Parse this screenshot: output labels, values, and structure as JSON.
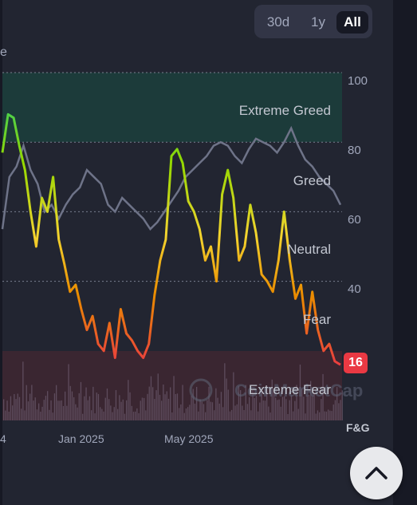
{
  "toggle": {
    "options": [
      "30d",
      "1y",
      "All"
    ],
    "selected": "All"
  },
  "axis_stub": "e",
  "chart_data": {
    "type": "line",
    "y_ticks": [
      100,
      80,
      60,
      40
    ],
    "ylim": [
      0,
      100
    ],
    "x_labels": [
      "4",
      "Jan 2025",
      "May 2025"
    ],
    "zones": [
      "Extreme Greed",
      "Greed",
      "Neutral",
      "Fear",
      "Extreme Fear"
    ],
    "zone_colors": {
      "extreme_greed": "#16c784",
      "extreme_fear": "#ea3943"
    },
    "current_value": 16,
    "volume_label": "F&G",
    "watermark": "CoinMarketCap",
    "series": [
      {
        "values": [
          55,
          70,
          73,
          79,
          72,
          68,
          60,
          62,
          58,
          62,
          65,
          67,
          72,
          70,
          68,
          62,
          60,
          64,
          62,
          60,
          58,
          55,
          57,
          60,
          63,
          66,
          70,
          72,
          74,
          76,
          79,
          80,
          79,
          76,
          74,
          78,
          81,
          80,
          79,
          77,
          80,
          84,
          79,
          75,
          73,
          70,
          68,
          66,
          62
        ]
      },
      {
        "values": [
          77,
          88,
          87,
          79,
          72,
          60,
          50,
          64,
          60,
          70,
          52,
          45,
          37,
          39,
          32,
          26,
          30,
          22,
          20,
          28,
          18,
          32,
          25,
          23,
          20,
          18,
          22,
          36,
          46,
          52,
          76,
          78,
          74,
          63,
          60,
          55,
          46,
          50,
          40,
          65,
          72,
          64,
          46,
          50,
          62,
          54,
          42,
          40,
          37,
          46,
          60,
          46,
          35,
          39,
          25,
          37,
          26,
          20,
          22,
          17,
          16
        ]
      }
    ]
  },
  "icons": {
    "scroll_top": "chevron-up-icon"
  }
}
